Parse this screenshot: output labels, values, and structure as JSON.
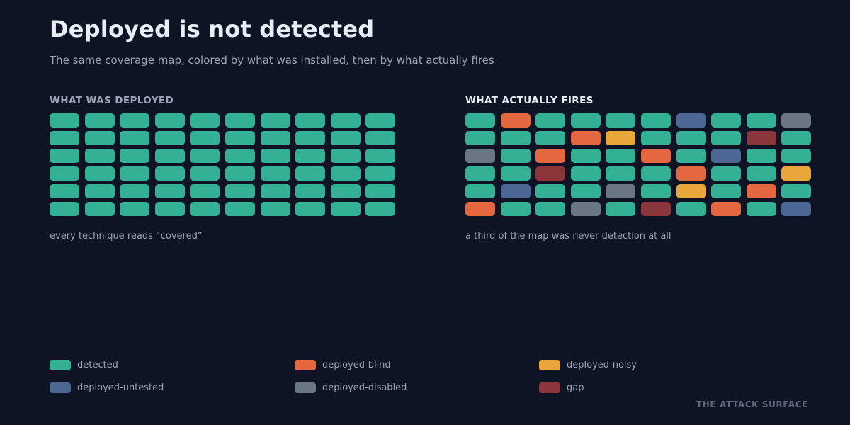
{
  "title": "Deployed is not detected",
  "subtitle": "The same coverage map, colored by what was installed, then by what actually fires",
  "colors": {
    "background": "#0e1424",
    "detected": "#34b095",
    "deployed-blind": "#e4673f",
    "deployed-noisy": "#e9a63a",
    "deployed-untested": "#4c6793",
    "deployed-disabled": "#6b7685",
    "gap": "#8b363b"
  },
  "panels": [
    {
      "title": "WHAT WAS DEPLOYED",
      "caption": "every technique reads “covered”",
      "columns": 10,
      "cells": [
        "detected",
        "detected",
        "detected",
        "detected",
        "detected",
        "detected",
        "detected",
        "detected",
        "detected",
        "detected",
        "detected",
        "detected",
        "detected",
        "detected",
        "detected",
        "detected",
        "detected",
        "detected",
        "detected",
        "detected",
        "detected",
        "detected",
        "detected",
        "detected",
        "detected",
        "detected",
        "detected",
        "detected",
        "detected",
        "detected",
        "detected",
        "detected",
        "detected",
        "detected",
        "detected",
        "detected",
        "detected",
        "detected",
        "detected",
        "detected",
        "detected",
        "detected",
        "detected",
        "detected",
        "detected",
        "detected",
        "detected",
        "detected",
        "detected",
        "detected",
        "detected",
        "detected",
        "detected",
        "detected",
        "detected",
        "detected",
        "detected",
        "detected",
        "detected",
        "detected"
      ]
    },
    {
      "title": "WHAT ACTUALLY FIRES",
      "caption": "a third of the map was never detection at all",
      "columns": 10,
      "cells": [
        "detected",
        "deployed-blind",
        "detected",
        "detected",
        "detected",
        "detected",
        "deployed-untested",
        "detected",
        "detected",
        "deployed-disabled",
        "detected",
        "detected",
        "detected",
        "deployed-blind",
        "deployed-noisy",
        "detected",
        "detected",
        "detected",
        "gap",
        "detected",
        "deployed-disabled",
        "detected",
        "deployed-blind",
        "detected",
        "detected",
        "deployed-blind",
        "detected",
        "deployed-untested",
        "detected",
        "detected",
        "detected",
        "detected",
        "gap",
        "detected",
        "detected",
        "detected",
        "deployed-blind",
        "detected",
        "detected",
        "deployed-noisy",
        "detected",
        "deployed-untested",
        "detected",
        "detected",
        "deployed-disabled",
        "detected",
        "deployed-noisy",
        "detected",
        "deployed-blind",
        "detected",
        "deployed-blind",
        "detected",
        "detected",
        "deployed-disabled",
        "detected",
        "gap",
        "detected",
        "deployed-blind",
        "detected",
        "deployed-untested"
      ]
    }
  ],
  "legend": [
    {
      "label": "detected",
      "key": "detected"
    },
    {
      "label": "deployed-blind",
      "key": "deployed-blind"
    },
    {
      "label": "deployed-noisy",
      "key": "deployed-noisy"
    },
    {
      "label": "deployed-untested",
      "key": "deployed-untested"
    },
    {
      "label": "deployed-disabled",
      "key": "deployed-disabled"
    },
    {
      "label": "gap",
      "key": "gap"
    }
  ],
  "brand": "THE ATTACK SURFACE"
}
